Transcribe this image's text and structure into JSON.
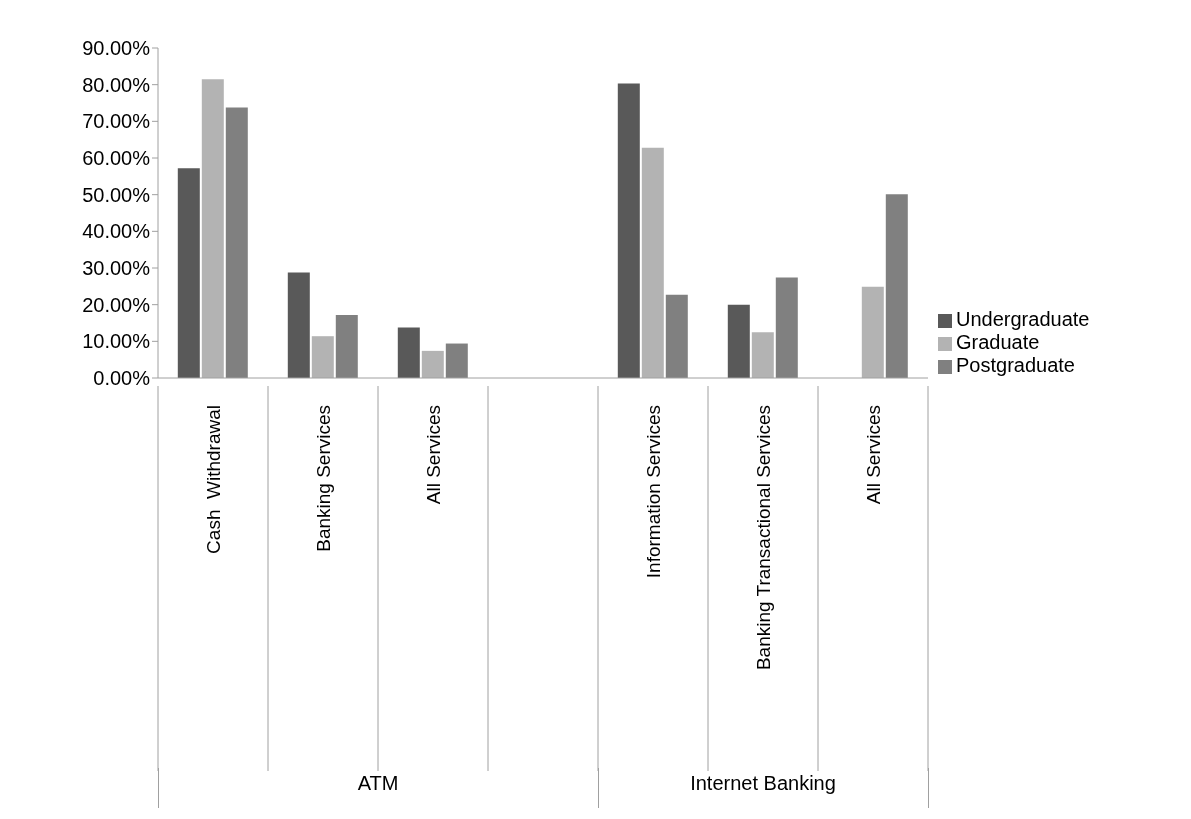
{
  "chart_data": {
    "type": "bar",
    "categories": [
      "Cash  Withdrawal",
      "Banking Services",
      "All Services",
      null,
      "Information Services",
      "Banking Transactional Services",
      "All Services"
    ],
    "series": [
      {
        "name": "Undergraduate",
        "color": "#595959",
        "values": [
          57.2,
          28.8,
          13.8,
          null,
          80.3,
          20,
          0
        ]
      },
      {
        "name": "Graduate",
        "color": "#b3b3b3",
        "values": [
          81.5,
          11.4,
          7.4,
          null,
          62.8,
          12.5,
          24.9
        ]
      },
      {
        "name": "Postgraduate",
        "color": "#808080",
        "values": [
          73.8,
          17.2,
          9.4,
          null,
          22.7,
          27.4,
          50.1
        ]
      }
    ],
    "ylim": [
      0,
      90
    ],
    "yticks": [
      {
        "value": 0,
        "label": "0.00%"
      },
      {
        "value": 10,
        "label": "10.00%"
      },
      {
        "value": 20,
        "label": "20.00%"
      },
      {
        "value": 30,
        "label": "30.00%"
      },
      {
        "value": 40,
        "label": "40.00%"
      },
      {
        "value": 50,
        "label": "50.00%"
      },
      {
        "value": 60,
        "label": "60.00%"
      },
      {
        "value": 70,
        "label": "70.00%"
      },
      {
        "value": 80,
        "label": "80.00%"
      },
      {
        "value": 90,
        "label": "90.00%"
      }
    ],
    "annotations": [
      "ATM",
      "Internet Banking"
    ],
    "grid": false,
    "legend": "right"
  }
}
